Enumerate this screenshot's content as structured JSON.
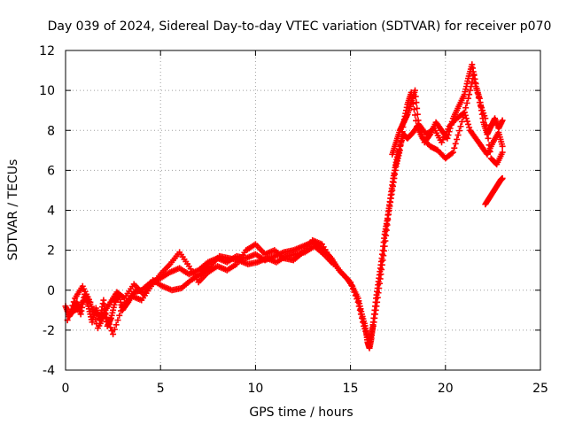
{
  "chart_data": {
    "type": "scatter",
    "title": "Day 039 of 2024, Sidereal Day-to-day VTEC variation (SDTVAR) for receiver p070",
    "xlabel": "GPS time / hours",
    "ylabel": "SDTVAR / TECUs",
    "xlim": [
      0,
      25
    ],
    "ylim": [
      -4,
      12
    ],
    "xticks": [
      "0",
      "5",
      "10",
      "15",
      "20",
      "25"
    ],
    "yticks": [
      "-4",
      "-2",
      "0",
      "2",
      "4",
      "6",
      "8",
      "10",
      "12"
    ],
    "grid": true,
    "marker": "+",
    "color": "#ff0000",
    "series": [
      {
        "name": "",
        "x": [
          0.0,
          0.2,
          0.4,
          0.6,
          0.8,
          1.0,
          1.2,
          1.4,
          1.6,
          1.8,
          2.0,
          2.2,
          2.4,
          2.6,
          2.8,
          3.0,
          3.3,
          3.6,
          4.0,
          4.5,
          5.0,
          5.5,
          6.0,
          6.5,
          7.0,
          7.5,
          8.0,
          8.5,
          9.0,
          9.5,
          10.0,
          10.5,
          11.0,
          11.5,
          12.0,
          12.5,
          13.0,
          13.5,
          14.0,
          14.4,
          14.8,
          15.1,
          15.4,
          15.6,
          15.8,
          15.9,
          16.0,
          16.1,
          16.2,
          16.35,
          16.5,
          16.65,
          16.8,
          16.95,
          17.1,
          17.25,
          17.4,
          17.6,
          17.8,
          18.0,
          18.3,
          18.6,
          19.0,
          19.4,
          19.8,
          20.2,
          20.6,
          21.0,
          21.3,
          21.6,
          21.9,
          22.2,
          22.5,
          22.8,
          23.0
        ],
        "y": [
          -0.8,
          -1.3,
          -1.0,
          -0.6,
          -1.2,
          -0.2,
          -0.8,
          -1.6,
          -0.9,
          -1.5,
          -0.5,
          -1.8,
          -1.4,
          -0.6,
          -0.2,
          -1.0,
          -0.6,
          -0.1,
          0.0,
          0.4,
          0.6,
          0.9,
          1.1,
          0.8,
          1.0,
          1.4,
          1.6,
          1.4,
          1.7,
          1.6,
          1.8,
          1.5,
          1.7,
          1.9,
          2.0,
          2.2,
          2.4,
          2.1,
          1.6,
          1.0,
          0.6,
          0.2,
          -0.4,
          -1.2,
          -1.9,
          -2.6,
          -2.9,
          -2.4,
          -1.6,
          -0.4,
          0.6,
          1.6,
          2.8,
          3.6,
          4.6,
          5.6,
          6.4,
          7.2,
          7.8,
          7.6,
          7.9,
          8.3,
          7.8,
          8.1,
          7.4,
          8.2,
          8.6,
          8.9,
          8.0,
          7.6,
          7.2,
          6.8,
          7.4,
          7.9,
          7.2
        ]
      },
      {
        "name": "",
        "x": [
          0.1,
          0.5,
          0.9,
          1.3,
          1.7,
          2.1,
          2.5,
          3.0,
          3.5,
          4.0,
          4.5,
          5.0,
          5.5,
          6.0,
          6.5,
          7.0,
          7.5,
          8.0,
          8.5,
          9.0,
          9.5,
          10.0,
          10.5,
          11.0,
          11.5,
          12.0,
          12.5,
          13.0,
          13.5,
          14.0,
          14.5,
          15.0,
          15.4,
          15.7,
          16.0,
          16.2,
          16.4,
          16.6,
          16.8,
          17.0,
          17.2,
          17.4,
          17.6,
          17.8,
          18.0,
          18.2,
          18.5,
          18.8,
          19.2,
          19.6,
          20.0,
          20.4,
          20.8,
          21.2,
          21.5,
          21.8,
          22.1,
          22.4,
          22.7,
          23.0
        ],
        "y": [
          -1.5,
          -0.4,
          0.2,
          -0.6,
          -1.9,
          -1.2,
          -2.2,
          -0.8,
          -0.3,
          -0.5,
          0.2,
          0.8,
          1.3,
          1.9,
          1.2,
          0.4,
          0.9,
          1.2,
          1.0,
          1.3,
          2.0,
          2.3,
          1.8,
          2.0,
          1.6,
          1.5,
          1.9,
          2.5,
          2.3,
          1.5,
          0.9,
          0.4,
          -0.6,
          -1.8,
          -2.6,
          -1.8,
          -0.6,
          0.8,
          2.2,
          3.8,
          5.0,
          6.2,
          7.0,
          8.4,
          9.3,
          9.9,
          8.2,
          7.6,
          7.2,
          7.0,
          6.6,
          6.9,
          8.2,
          9.6,
          10.8,
          9.4,
          8.6,
          6.6,
          6.3,
          6.9
        ]
      },
      {
        "name": "",
        "x": [
          17.2,
          17.4,
          17.6,
          17.8,
          18.0,
          18.2,
          18.4,
          18.6,
          18.9,
          19.2,
          19.5,
          19.8,
          20.1,
          20.4,
          20.7,
          21.0,
          21.2,
          21.4,
          21.6,
          21.8,
          22.0,
          22.2,
          22.4,
          22.6,
          22.8,
          23.0
        ],
        "y": [
          6.8,
          7.4,
          8.0,
          8.4,
          8.8,
          9.4,
          10.0,
          8.2,
          7.4,
          7.8,
          8.4,
          8.0,
          7.6,
          8.6,
          9.2,
          9.8,
          10.6,
          11.3,
          10.2,
          9.6,
          8.4,
          7.8,
          8.2,
          8.6,
          8.1,
          8.5
        ]
      },
      {
        "name": "",
        "x": [
          22.1,
          22.3,
          22.5,
          22.7,
          22.9,
          23.0
        ],
        "y": [
          4.3,
          4.6,
          4.9,
          5.2,
          5.5,
          5.6
        ]
      },
      {
        "name": "",
        "x": [
          0.3,
          0.7,
          1.1,
          1.5,
          1.9,
          2.3,
          2.7,
          3.1,
          3.6,
          4.1,
          4.6,
          5.1,
          5.6,
          6.1,
          6.6,
          7.1,
          7.6,
          8.1,
          8.6,
          9.1,
          9.6,
          10.1,
          10.6,
          11.1,
          11.6,
          12.1,
          12.6,
          13.1,
          13.6,
          14.1
        ],
        "y": [
          -1.1,
          -0.9,
          -0.3,
          -1.1,
          -1.3,
          -0.7,
          -0.1,
          -0.4,
          0.3,
          -0.2,
          0.5,
          0.2,
          0.0,
          0.1,
          0.5,
          0.8,
          1.2,
          1.7,
          1.6,
          1.5,
          1.3,
          1.4,
          1.6,
          1.4,
          1.7,
          1.8,
          1.9,
          2.2,
          1.8,
          1.3
        ]
      }
    ]
  }
}
